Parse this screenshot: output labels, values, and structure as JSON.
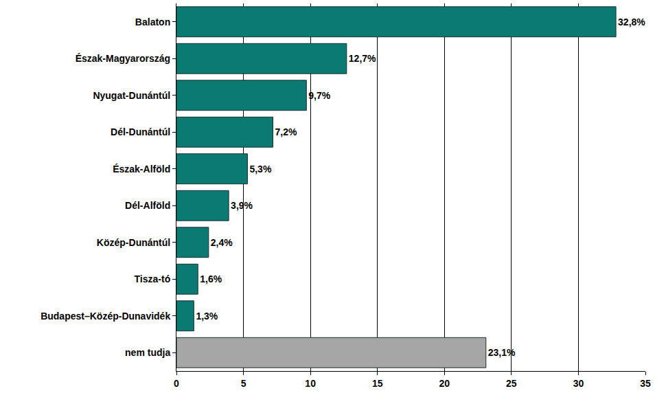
{
  "chart_data": {
    "type": "bar",
    "orientation": "horizontal",
    "categories": [
      "Balaton",
      "Észak-Magyarország",
      "Nyugat-Dunántúl",
      "Dél-Dunántúl",
      "Észak-Alföld",
      "Dél-Alföld",
      "Közép-Dunántúl",
      "Tisza-tó",
      "Budapest–Közép-Dunavidék",
      "nem tudja"
    ],
    "values": [
      32.8,
      12.7,
      9.7,
      7.2,
      5.3,
      3.9,
      2.4,
      1.6,
      1.3,
      23.1
    ],
    "value_labels": [
      "32,8%",
      "12,7%",
      "9,7%",
      "7,2%",
      "5,3%",
      "3,9%",
      "2,4%",
      "1,6%",
      "1,3%",
      "23,1%"
    ],
    "colors": [
      "#0b7a72",
      "#0b7a72",
      "#0b7a72",
      "#0b7a72",
      "#0b7a72",
      "#0b7a72",
      "#0b7a72",
      "#0b7a72",
      "#0b7a72",
      "#a6a6a6"
    ],
    "xlim": [
      0,
      35
    ],
    "xticks": [
      0,
      5,
      10,
      15,
      20,
      25,
      30,
      35
    ],
    "grid": true,
    "data_labels": true
  }
}
